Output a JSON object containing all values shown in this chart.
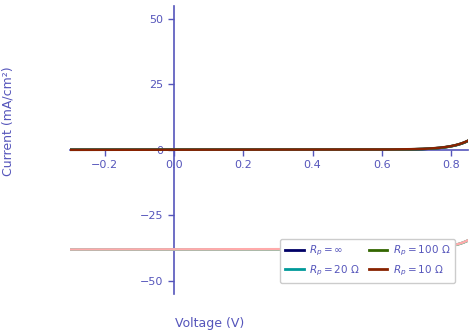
{
  "xlabel": "Voltage (V)",
  "ylabel": "Current (mA/cm²)",
  "xlim": [
    -0.3,
    0.85
  ],
  "ylim": [
    -55,
    55
  ],
  "xticks": [
    -0.2,
    0.0,
    0.2,
    0.4,
    0.6,
    0.8
  ],
  "yticks": [
    -50,
    -25,
    0,
    25,
    50
  ],
  "bg_color": "#ffffff",
  "axis_color": "#5555bb",
  "solar_params": {
    "IL": 38.0,
    "I0": 2.5e-07,
    "n": 2.0,
    "Vt": 0.02585,
    "Rs": 0.0
  },
  "Rp_vals": [
    1000000000000.0,
    100,
    20,
    10
  ],
  "dark_colors": [
    "#000066",
    "#336600",
    "#009999",
    "#882200"
  ],
  "light_colors": [
    "#ee44aa",
    "#99cc22",
    "#00dddd",
    "#ffaaaa"
  ],
  "lw": 1.8,
  "legend_labels": [
    "R_p = inf",
    "R_p = 100 Ohm",
    "R_p = 20 Ohm",
    "R_p = 10 Ohm"
  ],
  "legend_colors_dark": [
    "#000066",
    "#336600",
    "#009999",
    "#882200"
  ],
  "legend_colors_light": [
    "#ee44aa",
    "#99cc22",
    "#00dddd",
    "#ffaaaa"
  ]
}
